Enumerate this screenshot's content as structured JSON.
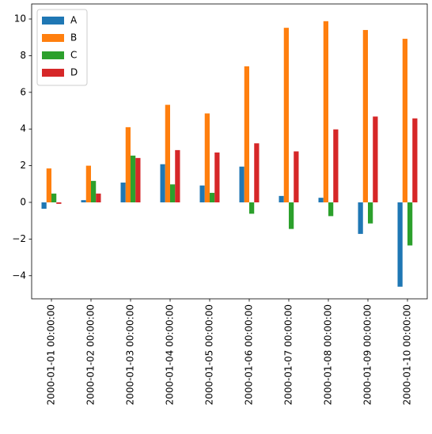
{
  "chart_data": {
    "type": "bar",
    "categories": [
      "2000-01-01 00:00:00",
      "2000-01-02 00:00:00",
      "2000-01-03 00:00:00",
      "2000-01-04 00:00:00",
      "2000-01-05 00:00:00",
      "2000-01-06 00:00:00",
      "2000-01-07 00:00:00",
      "2000-01-08 00:00:00",
      "2000-01-09 00:00:00",
      "2000-01-10 00:00:00"
    ],
    "series": [
      {
        "name": "A",
        "color": "#1f77b4",
        "values": [
          -0.35,
          0.12,
          1.08,
          2.08,
          0.92,
          1.95,
          0.35,
          0.25,
          -1.72,
          -4.6
        ]
      },
      {
        "name": "B",
        "color": "#ff7f0e",
        "values": [
          1.85,
          2.0,
          4.1,
          5.32,
          4.85,
          7.42,
          9.52,
          9.88,
          9.4,
          8.92
        ]
      },
      {
        "name": "C",
        "color": "#2ca02c",
        "values": [
          0.48,
          1.17,
          2.55,
          0.98,
          0.52,
          -0.62,
          -1.45,
          -0.75,
          -1.15,
          -2.35
        ]
      },
      {
        "name": "D",
        "color": "#d62728",
        "values": [
          -0.08,
          0.48,
          2.42,
          2.85,
          2.72,
          3.22,
          2.78,
          3.98,
          4.68,
          4.58
        ]
      }
    ],
    "ylim": [
      -5.26,
      10.82
    ],
    "yticks": [
      {
        "value": -4,
        "label": "−4"
      },
      {
        "value": -2,
        "label": "−2"
      },
      0,
      2,
      4,
      6,
      8,
      10
    ],
    "legend": "upper left"
  }
}
